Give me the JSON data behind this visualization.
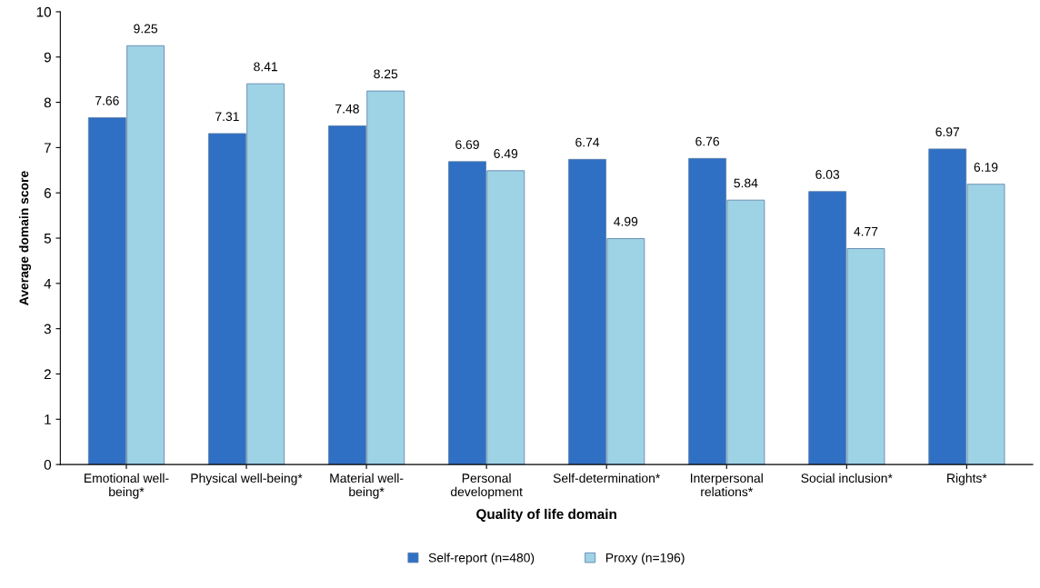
{
  "chart_data": {
    "type": "bar",
    "xlabel": "Quality of life domain",
    "ylabel": "Average domain score",
    "categories": [
      "Emotional well-\nbeing*",
      "Physical well-being*",
      "Material well-\nbeing*",
      "Personal\ndevelopment",
      "Self-determination*",
      "Interpersonal\nrelations*",
      "Social inclusion*",
      "Rights*"
    ],
    "series": [
      {
        "name": "Self-report (n=480)",
        "color": "#2f6fc4",
        "values": [
          7.66,
          7.31,
          7.48,
          6.69,
          6.74,
          6.76,
          6.03,
          6.97
        ]
      },
      {
        "name": "Proxy (n=196)",
        "color": "#9ed3e6",
        "values": [
          9.25,
          8.41,
          8.25,
          6.49,
          4.99,
          5.84,
          4.77,
          6.19
        ]
      }
    ],
    "ylim": [
      0,
      10
    ],
    "yticks": [
      0,
      1,
      2,
      3,
      4,
      5,
      6,
      7,
      8,
      9,
      10
    ],
    "data_labels": true,
    "legend": "bottom",
    "grid": false
  }
}
